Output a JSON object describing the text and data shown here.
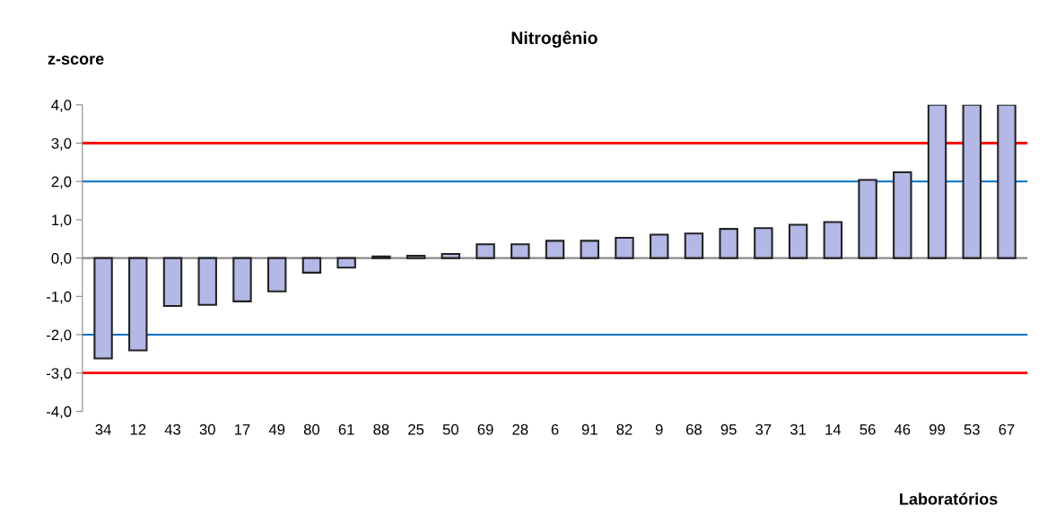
{
  "chart_data": {
    "type": "bar",
    "title": "Nitrogênio",
    "xlabel": "Laboratórios",
    "ylabel": "z-score",
    "categories": [
      "34",
      "12",
      "43",
      "30",
      "17",
      "49",
      "80",
      "61",
      "88",
      "25",
      "50",
      "69",
      "28",
      "6",
      "91",
      "82",
      "9",
      "68",
      "95",
      "37",
      "31",
      "14",
      "56",
      "46",
      "99",
      "53",
      "67"
    ],
    "values": [
      -2.62,
      -2.41,
      -1.25,
      -1.22,
      -1.13,
      -0.87,
      -0.38,
      -0.25,
      0.04,
      0.06,
      0.11,
      0.36,
      0.36,
      0.45,
      0.45,
      0.53,
      0.61,
      0.64,
      0.76,
      0.78,
      0.87,
      0.94,
      2.04,
      2.24,
      4.0,
      4.0,
      4.0
    ],
    "color": "#b4b8e6",
    "ylim": [
      -4.0,
      4.0
    ],
    "yticks": [
      {
        "value": -4.0,
        "label": "-4,0"
      },
      {
        "value": -3.0,
        "label": "-3,0"
      },
      {
        "value": -2.0,
        "label": "-2,0"
      },
      {
        "value": -1.0,
        "label": "-1,0"
      },
      {
        "value": 0.0,
        "label": "0,0"
      },
      {
        "value": 1.0,
        "label": "1,0"
      },
      {
        "value": 2.0,
        "label": "2,0"
      },
      {
        "value": 3.0,
        "label": "3,0"
      },
      {
        "value": 4.0,
        "label": "4,0"
      }
    ],
    "ref_lines": [
      {
        "axis": "y",
        "value": 3.0,
        "color": "#ff0000"
      },
      {
        "axis": "y",
        "value": -3.0,
        "color": "#ff0000"
      },
      {
        "axis": "y",
        "value": 2.0,
        "color": "#0070c0"
      },
      {
        "axis": "y",
        "value": -2.0,
        "color": "#0070c0"
      }
    ],
    "grid": false
  }
}
